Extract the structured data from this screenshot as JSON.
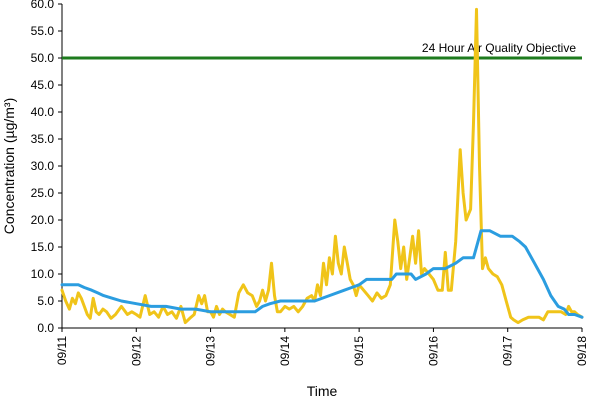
{
  "chart_data": {
    "type": "line",
    "title": "",
    "xlabel": "Time",
    "ylabel": "Concentration (µg/m³)",
    "x_ticks": [
      "09/11",
      "09/12",
      "09/13",
      "09/14",
      "09/15",
      "09/16",
      "09/17",
      "09/18"
    ],
    "y_ticks": [
      "0.0",
      "5.0",
      "10.0",
      "15.0",
      "20.0",
      "25.0",
      "30.0",
      "35.0",
      "40.0",
      "45.0",
      "50.0",
      "55.0",
      "60.0"
    ],
    "ylim": [
      0,
      60
    ],
    "xlim_days": [
      0,
      7
    ],
    "grid": false,
    "reference_line": {
      "label": "24 Hour Air Quality Objective",
      "value": 50,
      "color": "#1e7b1e"
    },
    "series": [
      {
        "color": "#f0c419",
        "points": [
          [
            0.0,
            7.0
          ],
          [
            0.05,
            5.0
          ],
          [
            0.1,
            3.5
          ],
          [
            0.14,
            5.5
          ],
          [
            0.18,
            4.5
          ],
          [
            0.22,
            6.5
          ],
          [
            0.26,
            5.5
          ],
          [
            0.3,
            4.0
          ],
          [
            0.34,
            2.5
          ],
          [
            0.38,
            1.8
          ],
          [
            0.42,
            5.5
          ],
          [
            0.46,
            3.0
          ],
          [
            0.5,
            2.5
          ],
          [
            0.55,
            3.5
          ],
          [
            0.6,
            3.0
          ],
          [
            0.66,
            1.8
          ],
          [
            0.72,
            2.5
          ],
          [
            0.8,
            4.0
          ],
          [
            0.88,
            2.5
          ],
          [
            0.94,
            3.0
          ],
          [
            1.0,
            2.5
          ],
          [
            1.05,
            2.0
          ],
          [
            1.12,
            6.0
          ],
          [
            1.18,
            2.5
          ],
          [
            1.24,
            3.0
          ],
          [
            1.3,
            2.0
          ],
          [
            1.36,
            4.0
          ],
          [
            1.42,
            2.5
          ],
          [
            1.48,
            3.0
          ],
          [
            1.54,
            1.8
          ],
          [
            1.6,
            4.0
          ],
          [
            1.66,
            1.0
          ],
          [
            1.72,
            1.8
          ],
          [
            1.78,
            2.5
          ],
          [
            1.84,
            6.0
          ],
          [
            1.88,
            4.5
          ],
          [
            1.92,
            6.0
          ],
          [
            1.96,
            3.0
          ],
          [
            2.0,
            3.0
          ],
          [
            2.04,
            2.0
          ],
          [
            2.08,
            4.0
          ],
          [
            2.12,
            2.5
          ],
          [
            2.16,
            3.5
          ],
          [
            2.2,
            3.0
          ],
          [
            2.26,
            2.5
          ],
          [
            2.32,
            2.0
          ],
          [
            2.38,
            6.5
          ],
          [
            2.44,
            8.0
          ],
          [
            2.5,
            6.5
          ],
          [
            2.56,
            6.0
          ],
          [
            2.62,
            4.0
          ],
          [
            2.66,
            5.0
          ],
          [
            2.7,
            7.0
          ],
          [
            2.74,
            5.0
          ],
          [
            2.78,
            7.0
          ],
          [
            2.82,
            12.0
          ],
          [
            2.86,
            6.0
          ],
          [
            2.9,
            3.0
          ],
          [
            2.94,
            3.0
          ],
          [
            3.0,
            4.0
          ],
          [
            3.06,
            3.5
          ],
          [
            3.12,
            4.0
          ],
          [
            3.18,
            3.0
          ],
          [
            3.24,
            4.0
          ],
          [
            3.3,
            5.5
          ],
          [
            3.36,
            6.0
          ],
          [
            3.4,
            5.0
          ],
          [
            3.44,
            8.0
          ],
          [
            3.48,
            6.0
          ],
          [
            3.52,
            12.0
          ],
          [
            3.56,
            8.0
          ],
          [
            3.6,
            13.0
          ],
          [
            3.64,
            10.0
          ],
          [
            3.68,
            17.0
          ],
          [
            3.72,
            12.0
          ],
          [
            3.76,
            10.0
          ],
          [
            3.8,
            15.0
          ],
          [
            3.84,
            12.0
          ],
          [
            3.88,
            9.0
          ],
          [
            3.92,
            8.0
          ],
          [
            3.96,
            6.0
          ],
          [
            4.0,
            8.0
          ],
          [
            4.06,
            7.0
          ],
          [
            4.12,
            6.0
          ],
          [
            4.18,
            5.0
          ],
          [
            4.24,
            6.5
          ],
          [
            4.3,
            5.5
          ],
          [
            4.36,
            6.0
          ],
          [
            4.42,
            8.0
          ],
          [
            4.48,
            20.0
          ],
          [
            4.52,
            16.0
          ],
          [
            4.56,
            11.0
          ],
          [
            4.6,
            15.0
          ],
          [
            4.64,
            9.0
          ],
          [
            4.68,
            13.0
          ],
          [
            4.72,
            17.0
          ],
          [
            4.76,
            12.0
          ],
          [
            4.8,
            18.0
          ],
          [
            4.84,
            10.0
          ],
          [
            4.88,
            11.0
          ],
          [
            4.94,
            10.0
          ],
          [
            5.0,
            9.0
          ],
          [
            5.06,
            7.0
          ],
          [
            5.12,
            7.0
          ],
          [
            5.16,
            14.0
          ],
          [
            5.2,
            7.0
          ],
          [
            5.24,
            7.0
          ],
          [
            5.3,
            16.0
          ],
          [
            5.36,
            33.0
          ],
          [
            5.4,
            25.0
          ],
          [
            5.44,
            20.0
          ],
          [
            5.5,
            22.0
          ],
          [
            5.54,
            38.0
          ],
          [
            5.58,
            59.0
          ],
          [
            5.62,
            30.0
          ],
          [
            5.66,
            11.0
          ],
          [
            5.7,
            13.0
          ],
          [
            5.74,
            11.0
          ],
          [
            5.8,
            10.0
          ],
          [
            5.86,
            9.5
          ],
          [
            5.92,
            8.0
          ],
          [
            5.98,
            5.0
          ],
          [
            6.04,
            2.0
          ],
          [
            6.08,
            1.5
          ],
          [
            6.14,
            1.0
          ],
          [
            6.2,
            1.5
          ],
          [
            6.28,
            2.0
          ],
          [
            6.36,
            2.0
          ],
          [
            6.42,
            2.0
          ],
          [
            6.48,
            1.5
          ],
          [
            6.54,
            3.0
          ],
          [
            6.6,
            3.0
          ],
          [
            6.66,
            3.0
          ],
          [
            6.72,
            3.0
          ],
          [
            6.78,
            2.5
          ],
          [
            6.82,
            4.0
          ],
          [
            6.86,
            3.0
          ],
          [
            6.9,
            3.0
          ],
          [
            6.94,
            2.5
          ],
          [
            7.0,
            2.0
          ]
        ]
      },
      {
        "color": "#2b9de0",
        "points": [
          [
            0.0,
            8.0
          ],
          [
            0.1,
            8.0
          ],
          [
            0.22,
            8.0
          ],
          [
            0.3,
            7.5
          ],
          [
            0.4,
            7.0
          ],
          [
            0.48,
            6.5
          ],
          [
            0.56,
            6.0
          ],
          [
            0.68,
            5.5
          ],
          [
            0.8,
            5.0
          ],
          [
            1.0,
            4.5
          ],
          [
            1.2,
            4.0
          ],
          [
            1.4,
            4.0
          ],
          [
            1.6,
            3.5
          ],
          [
            1.8,
            3.5
          ],
          [
            2.0,
            3.0
          ],
          [
            2.2,
            3.0
          ],
          [
            2.4,
            3.0
          ],
          [
            2.6,
            3.0
          ],
          [
            2.7,
            4.0
          ],
          [
            2.8,
            4.5
          ],
          [
            2.94,
            5.0
          ],
          [
            3.2,
            5.0
          ],
          [
            3.4,
            5.0
          ],
          [
            3.6,
            6.0
          ],
          [
            3.8,
            7.0
          ],
          [
            3.9,
            7.5
          ],
          [
            4.0,
            8.0
          ],
          [
            4.1,
            9.0
          ],
          [
            4.3,
            9.0
          ],
          [
            4.44,
            9.0
          ],
          [
            4.5,
            10.0
          ],
          [
            4.7,
            10.0
          ],
          [
            4.76,
            9.0
          ],
          [
            4.9,
            10.0
          ],
          [
            5.0,
            11.0
          ],
          [
            5.16,
            11.0
          ],
          [
            5.3,
            12.0
          ],
          [
            5.4,
            13.0
          ],
          [
            5.54,
            13.0
          ],
          [
            5.64,
            18.0
          ],
          [
            5.76,
            18.0
          ],
          [
            5.9,
            17.0
          ],
          [
            6.06,
            17.0
          ],
          [
            6.16,
            16.0
          ],
          [
            6.24,
            15.0
          ],
          [
            6.36,
            12.0
          ],
          [
            6.48,
            9.0
          ],
          [
            6.58,
            6.0
          ],
          [
            6.68,
            4.0
          ],
          [
            6.76,
            3.5
          ],
          [
            6.82,
            2.5
          ],
          [
            6.9,
            2.5
          ],
          [
            7.0,
            2.0
          ]
        ]
      }
    ]
  }
}
